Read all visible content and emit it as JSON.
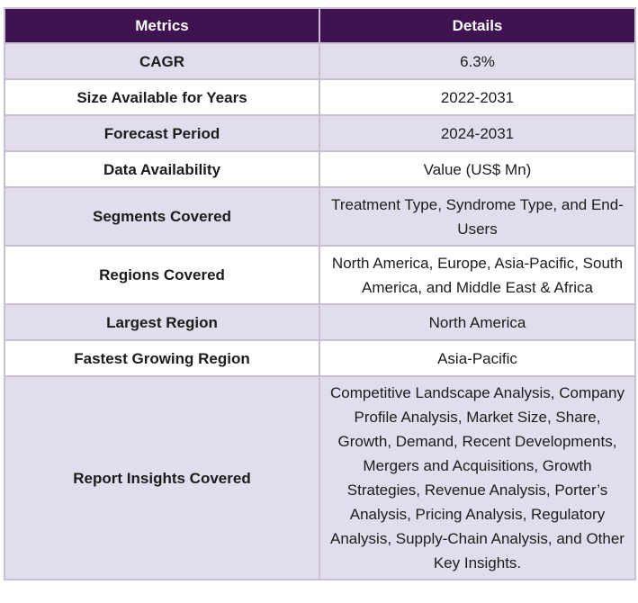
{
  "table": {
    "headers": [
      "Metrics",
      "Details"
    ],
    "rows": [
      {
        "metric": "CAGR",
        "details": "6.3%"
      },
      {
        "metric": "Size Available for Years",
        "details": "2022-2031"
      },
      {
        "metric": "Forecast Period",
        "details": "2024-2031"
      },
      {
        "metric": "Data Availability",
        "details": "Value (US$ Mn)"
      },
      {
        "metric": "Segments Covered",
        "details": "Treatment Type, Syndrome Type, and End-Users"
      },
      {
        "metric": "Regions Covered",
        "details": "North America, Europe, Asia-Pacific, South America, and Middle East & Africa"
      },
      {
        "metric": "Largest Region",
        "details": "North America"
      },
      {
        "metric": "Fastest Growing Region",
        "details": "Asia-Pacific"
      },
      {
        "metric": "Report Insights Covered",
        "details": "Competitive Landscape Analysis, Company Profile Analysis, Market Size, Share, Growth, Demand, Recent Developments, Mergers and Acquisitions, Growth Strategies, Revenue Analysis, Porter’s Analysis, Pricing Analysis, Regulatory Analysis, Supply-Chain Analysis, and Other Key Insights."
      }
    ]
  },
  "colors": {
    "header_bg": "#3f1250",
    "header_text": "#ffffff",
    "row_shade": "#e1dded",
    "row_plain": "#ffffff",
    "border": "#c8bfd4"
  }
}
